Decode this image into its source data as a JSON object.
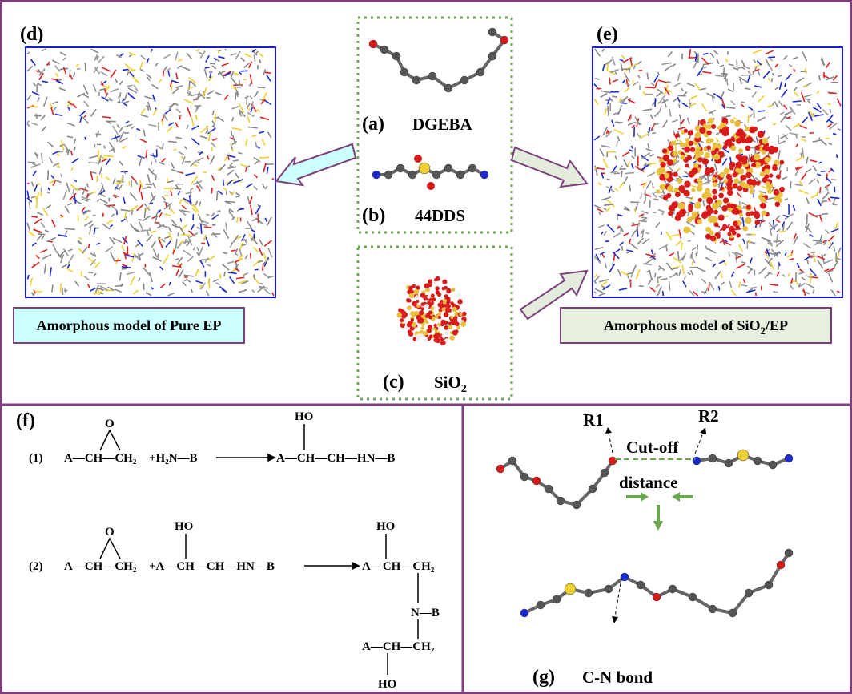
{
  "panels": {
    "d": {
      "label": "(d)",
      "caption": "Amorphous model of Pure EP"
    },
    "e": {
      "label": "(e)",
      "caption": {
        "text": "Amorphous model of  SiO",
        "sub": "2",
        "tail": "/EP"
      }
    },
    "a": {
      "label": "(a)",
      "name": "DGEBA"
    },
    "b": {
      "label": "(b)",
      "name": "44DDS"
    },
    "c": {
      "label": "(c)",
      "name": {
        "text": "SiO",
        "sub": "2"
      }
    },
    "f": {
      "label": "(f)",
      "reactions": [
        {
          "number": "(1)",
          "texts": [
            "O",
            "A—CH—CH₂",
            "+H₂N—B",
            "HO",
            "A—CH—CH—HN—B"
          ]
        },
        {
          "number": "(2)",
          "texts": [
            "O",
            "A—CH—CH₂",
            "HO",
            "+A—CH—CH—HN—B",
            "HO",
            "A—CH—CH₂",
            "N—B",
            "A—CH—CH₂",
            "HO"
          ]
        }
      ]
    },
    "g": {
      "label": "(g)",
      "name": "C-N bond",
      "r1": "R1",
      "r2": "R2",
      "cutoff": "Cut-off",
      "distance": "distance"
    }
  }
}
